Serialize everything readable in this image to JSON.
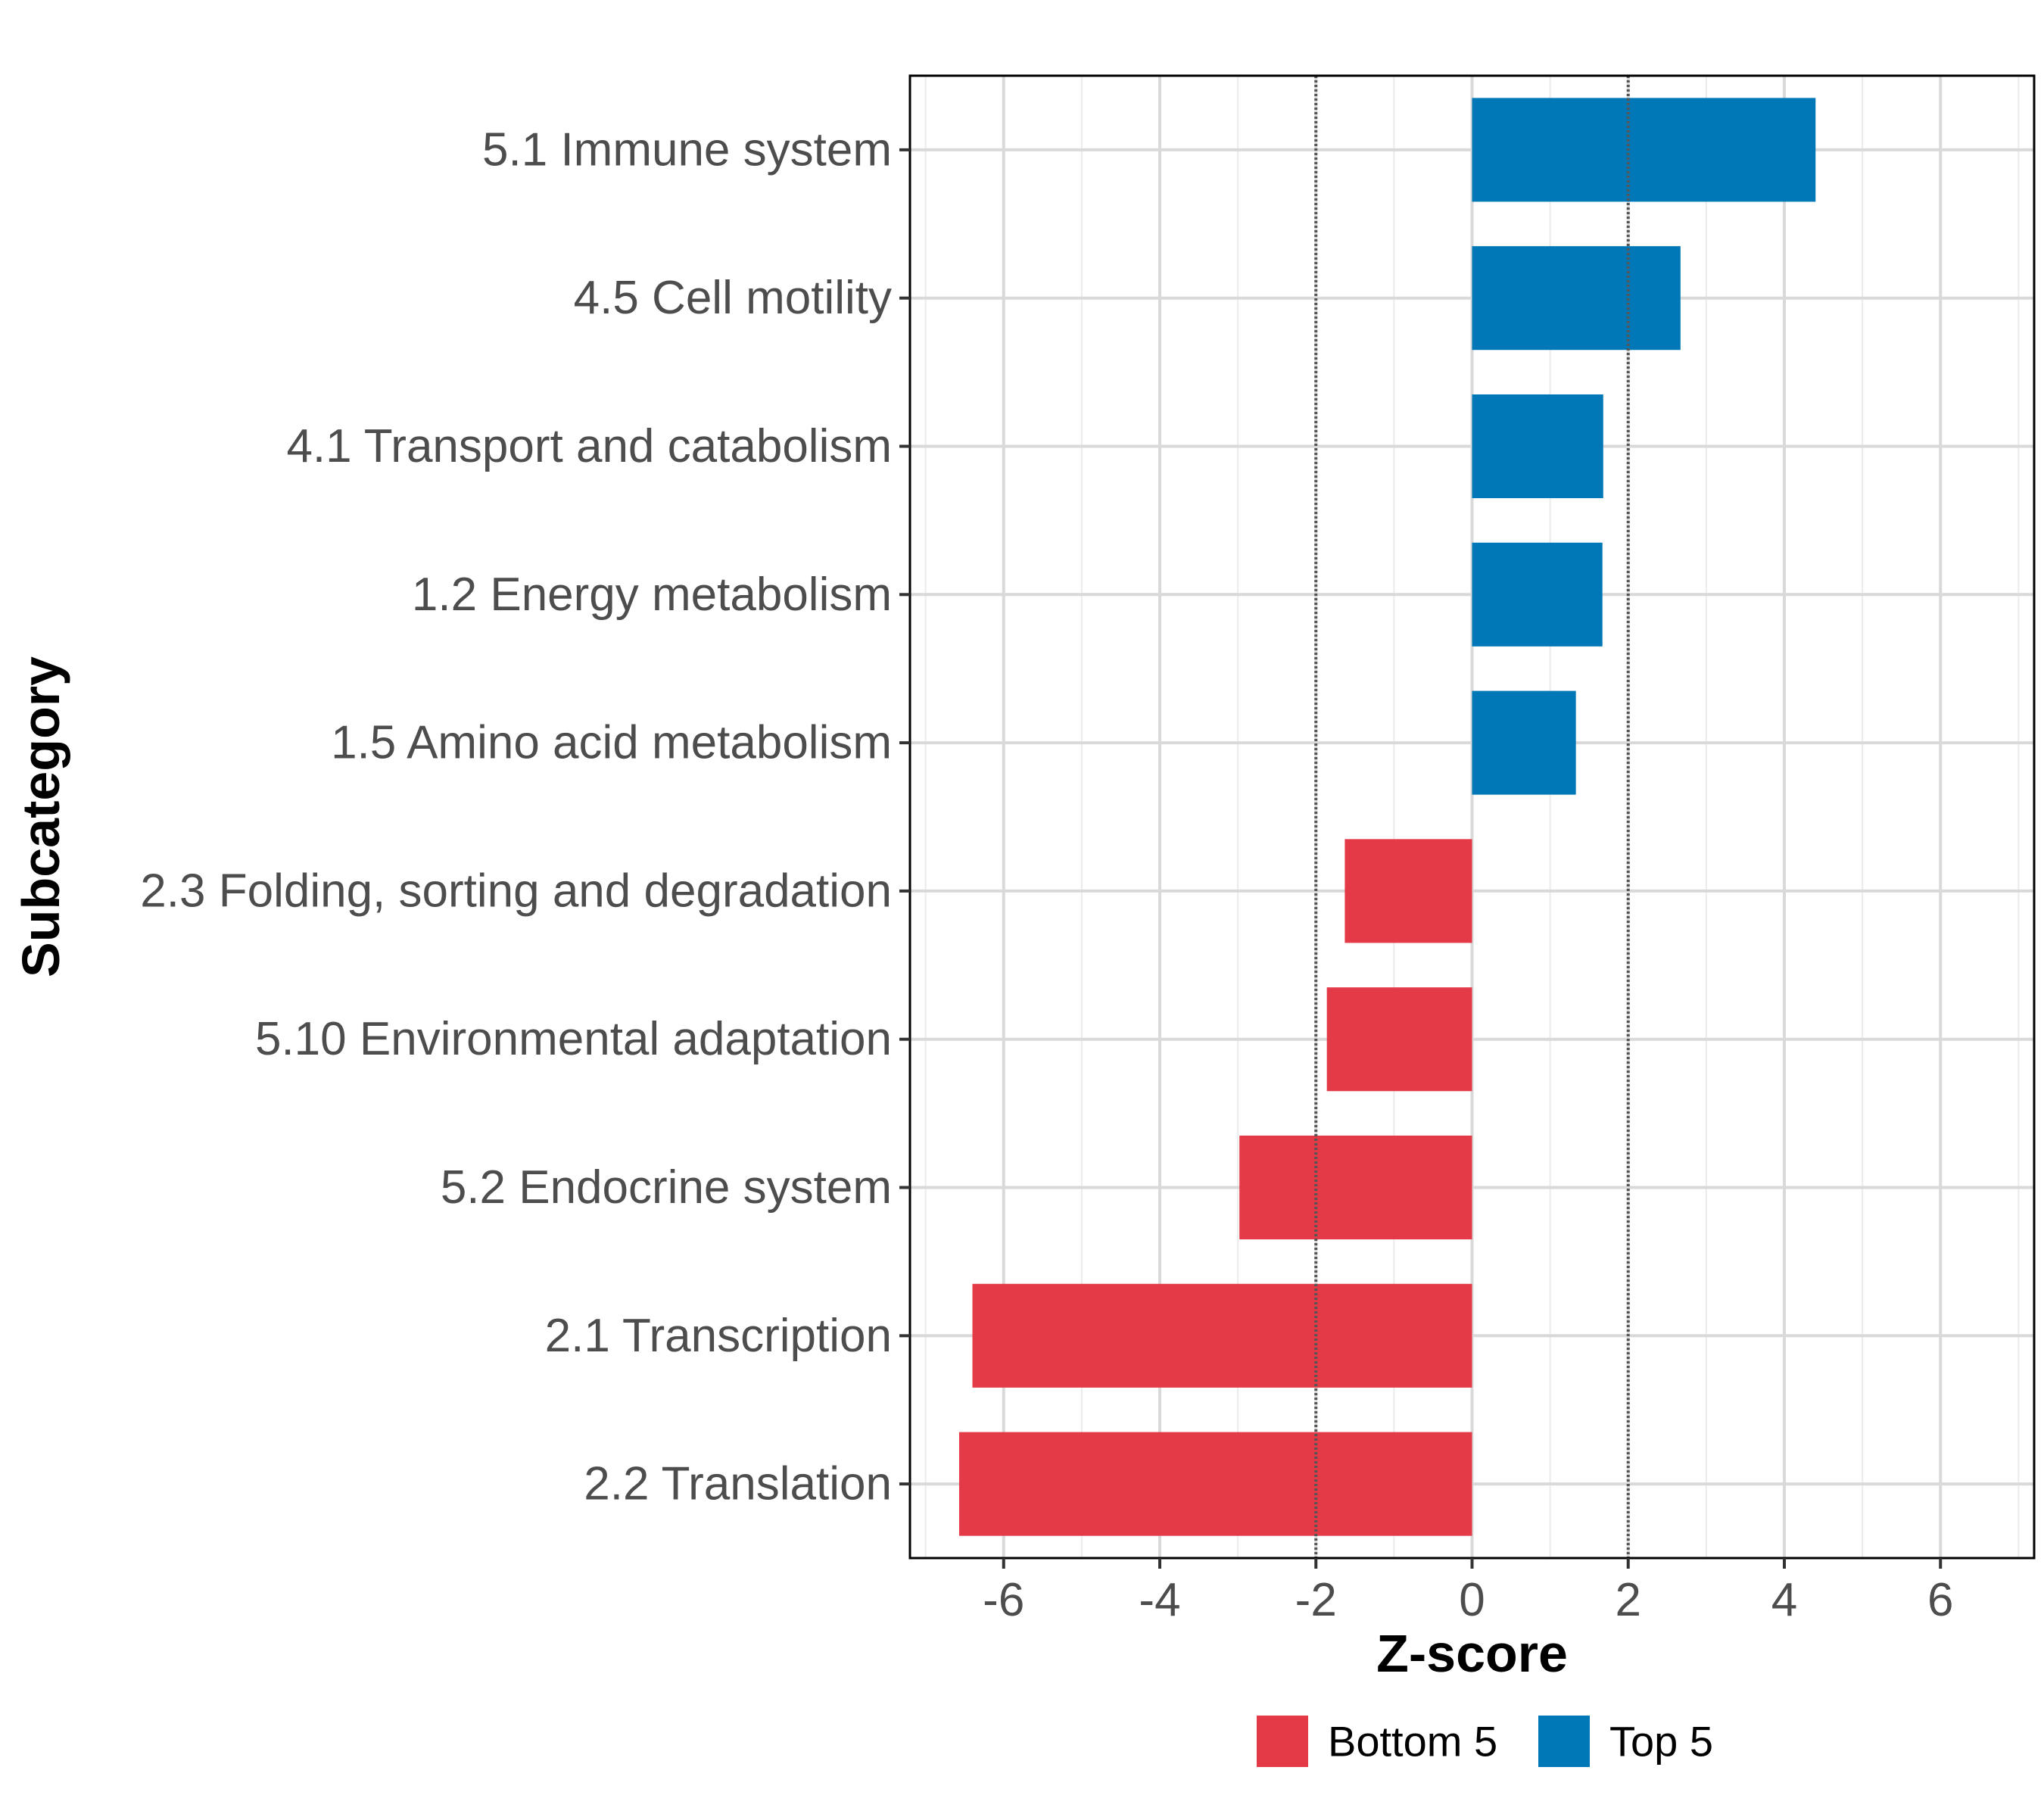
{
  "chart_data": {
    "type": "bar",
    "orientation": "horizontal",
    "xlabel": "Z-score",
    "ylabel": "Subcategory",
    "xlim": [
      -7.2,
      7.2
    ],
    "xticks": [
      -6,
      -4,
      -2,
      0,
      2,
      4,
      6
    ],
    "xtick_labels": [
      "-6",
      "-4",
      "-2",
      "0",
      "2",
      "4",
      "6"
    ],
    "reference_lines": [
      -2,
      2
    ],
    "grid": true,
    "categories": [
      "5.1 Immune system",
      "4.5 Cell motility",
      "4.1 Transport and catabolism",
      "1.2 Energy metabolism",
      "1.5 Amino acid metabolism",
      "2.3 Folding, sorting and degradation",
      "5.10 Environmental adaptation",
      "5.2 Endocrine system",
      "2.1 Transcription",
      "2.2 Translation"
    ],
    "values": [
      4.4,
      2.67,
      1.68,
      1.67,
      1.33,
      -1.63,
      -1.86,
      -2.98,
      -6.4,
      -6.57
    ],
    "groups": [
      "Top 5",
      "Top 5",
      "Top 5",
      "Top 5",
      "Top 5",
      "Bottom 5",
      "Bottom 5",
      "Bottom 5",
      "Bottom 5",
      "Bottom 5"
    ],
    "legend": [
      {
        "label": "Bottom 5",
        "color": "#E43947"
      },
      {
        "label": "Top 5",
        "color": "#0077B6"
      }
    ],
    "legend_position": "bottom",
    "colors": {
      "Top 5": "#0077B6",
      "Bottom 5": "#E43947"
    }
  }
}
